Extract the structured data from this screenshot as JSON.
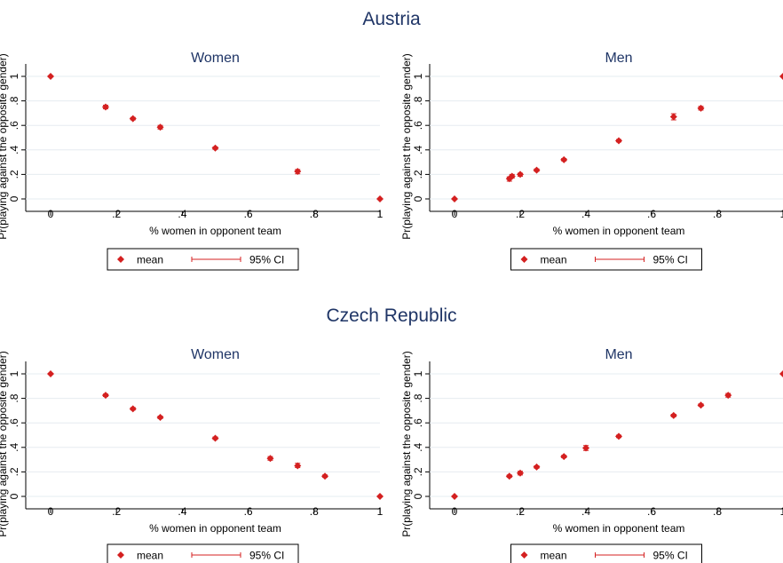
{
  "colors": {
    "marker": "#d42020",
    "text": "#1f3566",
    "grid": "#e6ecf0",
    "axis": "#000000"
  },
  "common": {
    "xlabel": "% women in opponent team",
    "ylabel": "Pr(playing against the opposite gender)",
    "legend_mean": "mean",
    "legend_ci": "95% CI",
    "xticks": [
      0,
      0.2,
      0.4,
      0.6,
      0.8,
      1
    ],
    "xtick_labels": [
      "0",
      ".2",
      ".4",
      ".6",
      ".8",
      "1"
    ],
    "yticks": [
      0,
      0.2,
      0.4,
      0.6,
      0.8,
      1
    ],
    "ytick_labels": [
      "0",
      ".2",
      ".4",
      ".6",
      ".8",
      "1"
    ]
  },
  "groups": [
    {
      "title": "Austria"
    },
    {
      "title": "Czech Republic"
    }
  ],
  "chart_data": [
    {
      "type": "scatter",
      "group": "Austria",
      "title": "Women",
      "xlabel": "% women in opponent team",
      "ylabel": "Pr(playing against the opposite gender)",
      "xlim": [
        0,
        1
      ],
      "ylim": [
        0,
        1
      ],
      "grid": true,
      "legend": "bottom",
      "series": [
        {
          "name": "mean",
          "x": [
            0,
            0.167,
            0.25,
            0.333,
            0.5,
            0.75,
            1
          ],
          "y": [
            1.0,
            0.75,
            0.655,
            0.585,
            0.415,
            0.225,
            0.0
          ]
        },
        {
          "name": "95% CI",
          "low": [
            1.0,
            0.735,
            0.645,
            0.57,
            0.405,
            0.205,
            0.0
          ],
          "high": [
            1.0,
            0.765,
            0.665,
            0.6,
            0.425,
            0.24,
            0.0
          ]
        }
      ]
    },
    {
      "type": "scatter",
      "group": "Austria",
      "title": "Men",
      "xlabel": "% women in opponent team",
      "ylabel": "Pr(playing against the opposite gender)",
      "xlim": [
        0,
        1
      ],
      "ylim": [
        0,
        1
      ],
      "grid": true,
      "legend": "bottom",
      "series": [
        {
          "name": "mean",
          "x": [
            0,
            0.167,
            0.175,
            0.2,
            0.25,
            0.333,
            0.5,
            0.667,
            0.75,
            1
          ],
          "y": [
            0.0,
            0.165,
            0.185,
            0.2,
            0.235,
            0.32,
            0.475,
            0.67,
            0.74,
            1.0
          ]
        },
        {
          "name": "95% CI",
          "low": [
            0.0,
            0.145,
            0.17,
            0.185,
            0.225,
            0.31,
            0.465,
            0.645,
            0.725,
            1.0
          ],
          "high": [
            0.0,
            0.18,
            0.2,
            0.21,
            0.245,
            0.33,
            0.485,
            0.695,
            0.755,
            1.0
          ]
        }
      ]
    },
    {
      "type": "scatter",
      "group": "Czech Republic",
      "title": "Women",
      "xlabel": "% women in opponent team",
      "ylabel": "Pr(playing against the opposite gender)",
      "xlim": [
        0,
        1
      ],
      "ylim": [
        0,
        1
      ],
      "grid": true,
      "legend": "bottom",
      "series": [
        {
          "name": "mean",
          "x": [
            0,
            0.167,
            0.25,
            0.333,
            0.5,
            0.667,
            0.75,
            0.833,
            1
          ],
          "y": [
            1.0,
            0.825,
            0.715,
            0.645,
            0.475,
            0.31,
            0.25,
            0.165,
            0.0
          ]
        },
        {
          "name": "95% CI",
          "low": [
            1.0,
            0.815,
            0.705,
            0.635,
            0.465,
            0.295,
            0.235,
            0.155,
            0.0
          ],
          "high": [
            1.0,
            0.835,
            0.725,
            0.655,
            0.485,
            0.325,
            0.27,
            0.175,
            0.0
          ]
        }
      ]
    },
    {
      "type": "scatter",
      "group": "Czech Republic",
      "title": "Men",
      "xlabel": "% women in opponent team",
      "ylabel": "Pr(playing against the opposite gender)",
      "xlim": [
        0,
        1
      ],
      "ylim": [
        0,
        1
      ],
      "grid": true,
      "legend": "bottom",
      "series": [
        {
          "name": "mean",
          "x": [
            0,
            0.167,
            0.2,
            0.25,
            0.333,
            0.4,
            0.5,
            0.667,
            0.75,
            0.833,
            1
          ],
          "y": [
            0.0,
            0.165,
            0.19,
            0.24,
            0.325,
            0.395,
            0.49,
            0.66,
            0.745,
            0.825,
            1.0
          ]
        },
        {
          "name": "95% CI",
          "low": [
            0.0,
            0.155,
            0.175,
            0.23,
            0.315,
            0.375,
            0.48,
            0.65,
            0.735,
            0.81,
            1.0
          ],
          "high": [
            0.0,
            0.175,
            0.205,
            0.25,
            0.335,
            0.415,
            0.5,
            0.67,
            0.755,
            0.84,
            1.0
          ]
        }
      ]
    }
  ]
}
